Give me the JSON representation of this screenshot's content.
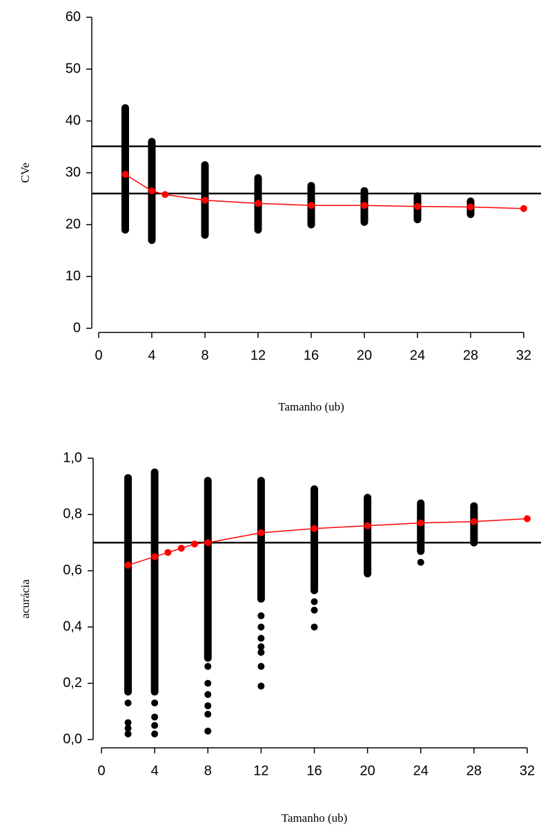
{
  "chart_data": [
    {
      "type": "scatter",
      "xlabel": "Tamanho (ub)",
      "ylabel": "CVe",
      "xlim": [
        0,
        32
      ],
      "xticks": [
        0,
        4,
        8,
        12,
        16,
        20,
        24,
        28,
        32
      ],
      "ylim": [
        0,
        60
      ],
      "yticks": [
        0,
        10,
        20,
        30,
        40,
        50,
        60
      ],
      "hlines": [
        35.1,
        26.0
      ],
      "hline_color": "#000000",
      "ranges": {
        "x": [
          2,
          4,
          8,
          12,
          16,
          20,
          24,
          28
        ],
        "low": [
          19,
          17,
          18,
          19,
          20,
          20.5,
          21,
          22
        ],
        "high": [
          42.5,
          36,
          31.5,
          29,
          27.5,
          26.5,
          25.5,
          24.5
        ],
        "color": "#000000"
      },
      "points": {
        "x": [],
        "y": []
      },
      "series": [
        {
          "x": [
            2,
            4,
            5,
            8,
            12,
            16,
            20,
            24,
            28,
            32
          ],
          "values": [
            29.7,
            26.5,
            25.8,
            24.7,
            24.1,
            23.7,
            23.7,
            23.5,
            23.4,
            23.1
          ],
          "color": "#ff0000"
        }
      ]
    },
    {
      "type": "scatter",
      "xlabel": "Tamanho (ub)",
      "ylabel": "acurácia",
      "xlim": [
        0,
        32
      ],
      "xticks": [
        0,
        4,
        8,
        12,
        16,
        20,
        24,
        28,
        32
      ],
      "ylim": [
        0,
        1
      ],
      "yticks": [
        {
          "value": 0,
          "label": "0,0"
        },
        {
          "value": 0.2,
          "label": "0,2"
        },
        {
          "value": 0.4,
          "label": "0,4"
        },
        {
          "value": 0.6,
          "label": "0,6"
        },
        {
          "value": 0.8,
          "label": "0,8"
        },
        {
          "value": 1,
          "label": "1,0"
        }
      ],
      "hlines": [
        0.7
      ],
      "hline_color": "#000000",
      "ranges": {
        "x": [
          2,
          4,
          8,
          12,
          16,
          20,
          24,
          28
        ],
        "low": [
          0.17,
          0.17,
          0.29,
          0.5,
          0.53,
          0.59,
          0.67,
          0.7
        ],
        "high": [
          0.93,
          0.95,
          0.92,
          0.92,
          0.89,
          0.86,
          0.84,
          0.83
        ],
        "color": "#000000"
      },
      "points": {
        "x": [
          2,
          2,
          2,
          2,
          4,
          4,
          4,
          4,
          8,
          8,
          8,
          8,
          8,
          8,
          12,
          12,
          12,
          12,
          12,
          12,
          12,
          16,
          16,
          16,
          24
        ],
        "y": [
          0.02,
          0.04,
          0.06,
          0.13,
          0.02,
          0.05,
          0.08,
          0.13,
          0.03,
          0.09,
          0.12,
          0.16,
          0.2,
          0.26,
          0.19,
          0.26,
          0.31,
          0.33,
          0.36,
          0.4,
          0.44,
          0.4,
          0.46,
          0.49,
          0.63
        ]
      },
      "series": [
        {
          "x": [
            2,
            4,
            5,
            6,
            7,
            8,
            12,
            16,
            20,
            24,
            28,
            32
          ],
          "values": [
            0.62,
            0.65,
            0.665,
            0.68,
            0.695,
            0.7,
            0.735,
            0.75,
            0.76,
            0.77,
            0.775,
            0.785
          ],
          "color": "#ff0000"
        }
      ]
    }
  ]
}
